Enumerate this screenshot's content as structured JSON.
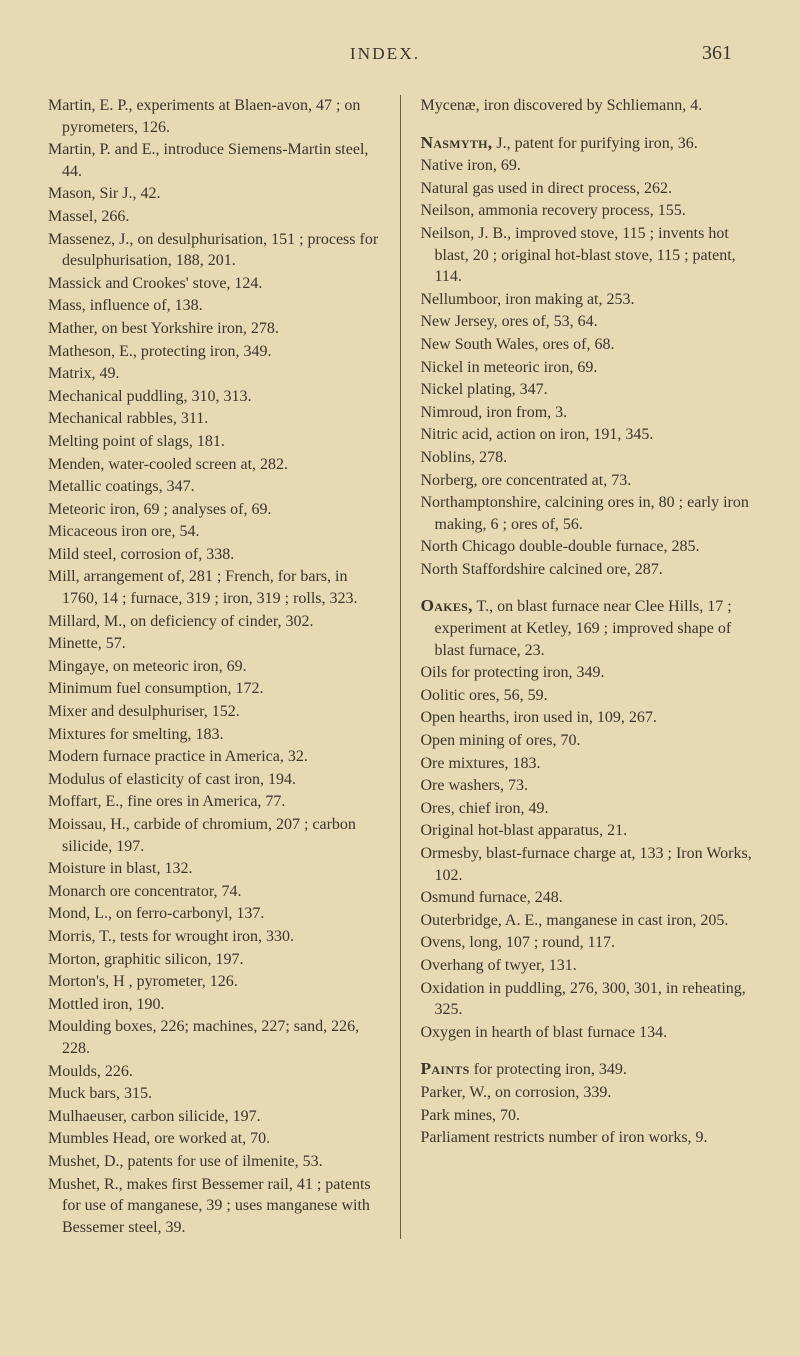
{
  "page": {
    "background_color": "#e7d9b3",
    "text_color": "#3a352d",
    "sepia_color": "#6b5c3f",
    "base_fontsize_pt": 12,
    "header_fontsize_pt": 13,
    "pagenum_fontsize_pt": 15,
    "headword_fontsize_pt": 13
  },
  "header": {
    "running_head": "INDEX.",
    "page_number": "361"
  },
  "left_col": [
    "Martin, E. P., experiments at Blaen-avon, 47 ; on pyrometers, 126.",
    "Martin, P. and E., introduce Siemens-Martin steel, 44.",
    "Mason, Sir J., 42.",
    "Massel, 266.",
    "Massenez, J., on desulphurisation, 151 ; process for desulphurisation, 188, 201.",
    "Massick and Crookes' stove, 124.",
    "Mass, influence of, 138.",
    "Mather, on best Yorkshire iron, 278.",
    "Matheson, E., protecting iron, 349.",
    "Matrix, 49.",
    "Mechanical puddling, 310, 313.",
    "Mechanical rabbles, 311.",
    "Melting point of slags, 181.",
    "Menden, water-cooled screen at, 282.",
    "Metallic coatings, 347.",
    "Meteoric iron, 69 ; analyses of, 69.",
    "Micaceous iron ore, 54.",
    "Mild steel, corrosion of, 338.",
    "Mill, arrangement of, 281 ; French, for bars, in 1760, 14 ; furnace, 319 ; iron, 319 ; rolls, 323.",
    "Millard, M., on deficiency of cinder, 302.",
    "Minette, 57.",
    "Mingaye, on meteoric iron, 69.",
    "Minimum fuel consumption, 172.",
    "Mixer and desulphuriser, 152.",
    "Mixtures for smelting, 183.",
    "Modern furnace practice in America, 32.",
    "Modulus of elasticity of cast iron, 194.",
    "Moffart, E., fine ores in America, 77.",
    "Moissau, H., carbide of chromium, 207 ; carbon silicide, 197.",
    "Moisture in blast, 132.",
    "Monarch ore concentrator, 74.",
    "Mond, L., on ferro-carbonyl, 137.",
    "Morris, T., tests for wrought iron, 330.",
    "Morton, graphitic silicon, 197.",
    "Morton's, H , pyrometer, 126.",
    "Mottled iron, 190.",
    "Moulding boxes, 226; machines, 227; sand, 226, 228.",
    "Moulds, 226.",
    "Muck bars, 315.",
    "Mulhaeuser, carbon silicide, 197.",
    "Mumbles Head, ore worked at, 70.",
    "Mushet, D., patents for use of ilmenite, 53.",
    "Mushet, R., makes first Bessemer rail, 41 ; patents for use of manganese, 39 ; uses manganese with Bessemer steel, 39."
  ],
  "right_col": [
    {
      "t": "Mycenæ, iron discovered by Schliemann, 4.",
      "space_after": true
    },
    {
      "t": "Nasmyth, J., patent for purifying iron, 36.",
      "hw": "Nasmyth,"
    },
    {
      "t": "Native iron, 69."
    },
    {
      "t": "Natural gas used in direct process, 262."
    },
    {
      "t": "Neilson, ammonia recovery process, 155."
    },
    {
      "t": "Neilson, J. B., improved stove, 115 ; invents hot blast, 20 ; original hot-blast stove, 115 ; patent, 114."
    },
    {
      "t": "Nellumboor, iron making at, 253."
    },
    {
      "t": "New Jersey, ores of, 53, 64."
    },
    {
      "t": "New South Wales, ores of, 68."
    },
    {
      "t": "Nickel in meteoric iron, 69."
    },
    {
      "t": "Nickel plating, 347."
    },
    {
      "t": "Nimroud, iron from, 3."
    },
    {
      "t": "Nitric acid, action on iron, 191, 345."
    },
    {
      "t": "Noblins, 278."
    },
    {
      "t": "Norberg, ore concentrated at, 73."
    },
    {
      "t": "Northamptonshire, calcining ores in, 80 ; early iron making, 6 ; ores of, 56."
    },
    {
      "t": "North Chicago double-double furnace, 285."
    },
    {
      "t": "North Staffordshire calcined ore, 287.",
      "space_after": true
    },
    {
      "t": "Oakes, T., on blast furnace near Clee Hills, 17 ; experiment at Ketley, 169 ; improved shape of blast furnace, 23.",
      "hw": "Oakes,"
    },
    {
      "t": "Oils for protecting iron, 349."
    },
    {
      "t": "Oolitic ores, 56, 59."
    },
    {
      "t": "Open hearths, iron used in, 109, 267."
    },
    {
      "t": "Open mining of ores, 70."
    },
    {
      "t": "Ore mixtures, 183."
    },
    {
      "t": "Ore washers, 73."
    },
    {
      "t": "Ores, chief iron, 49."
    },
    {
      "t": "Original hot-blast apparatus, 21."
    },
    {
      "t": "Ormesby, blast-furnace charge at, 133 ; Iron Works, 102."
    },
    {
      "t": "Osmund furnace, 248."
    },
    {
      "t": "Outerbridge, A. E., manganese in cast iron, 205."
    },
    {
      "t": "Ovens, long, 107 ; round, 117."
    },
    {
      "t": "Overhang of twyer, 131."
    },
    {
      "t": "Oxidation in puddling, 276, 300, 301, in reheating, 325."
    },
    {
      "t": "Oxygen in hearth of blast furnace 134.",
      "space_after": true
    },
    {
      "t": "Paints for protecting iron, 349.",
      "hw": "Paints"
    },
    {
      "t": "Parker, W., on corrosion, 339."
    },
    {
      "t": "Park mines, 70."
    },
    {
      "t": "Parliament restricts number of iron works, 9."
    }
  ]
}
